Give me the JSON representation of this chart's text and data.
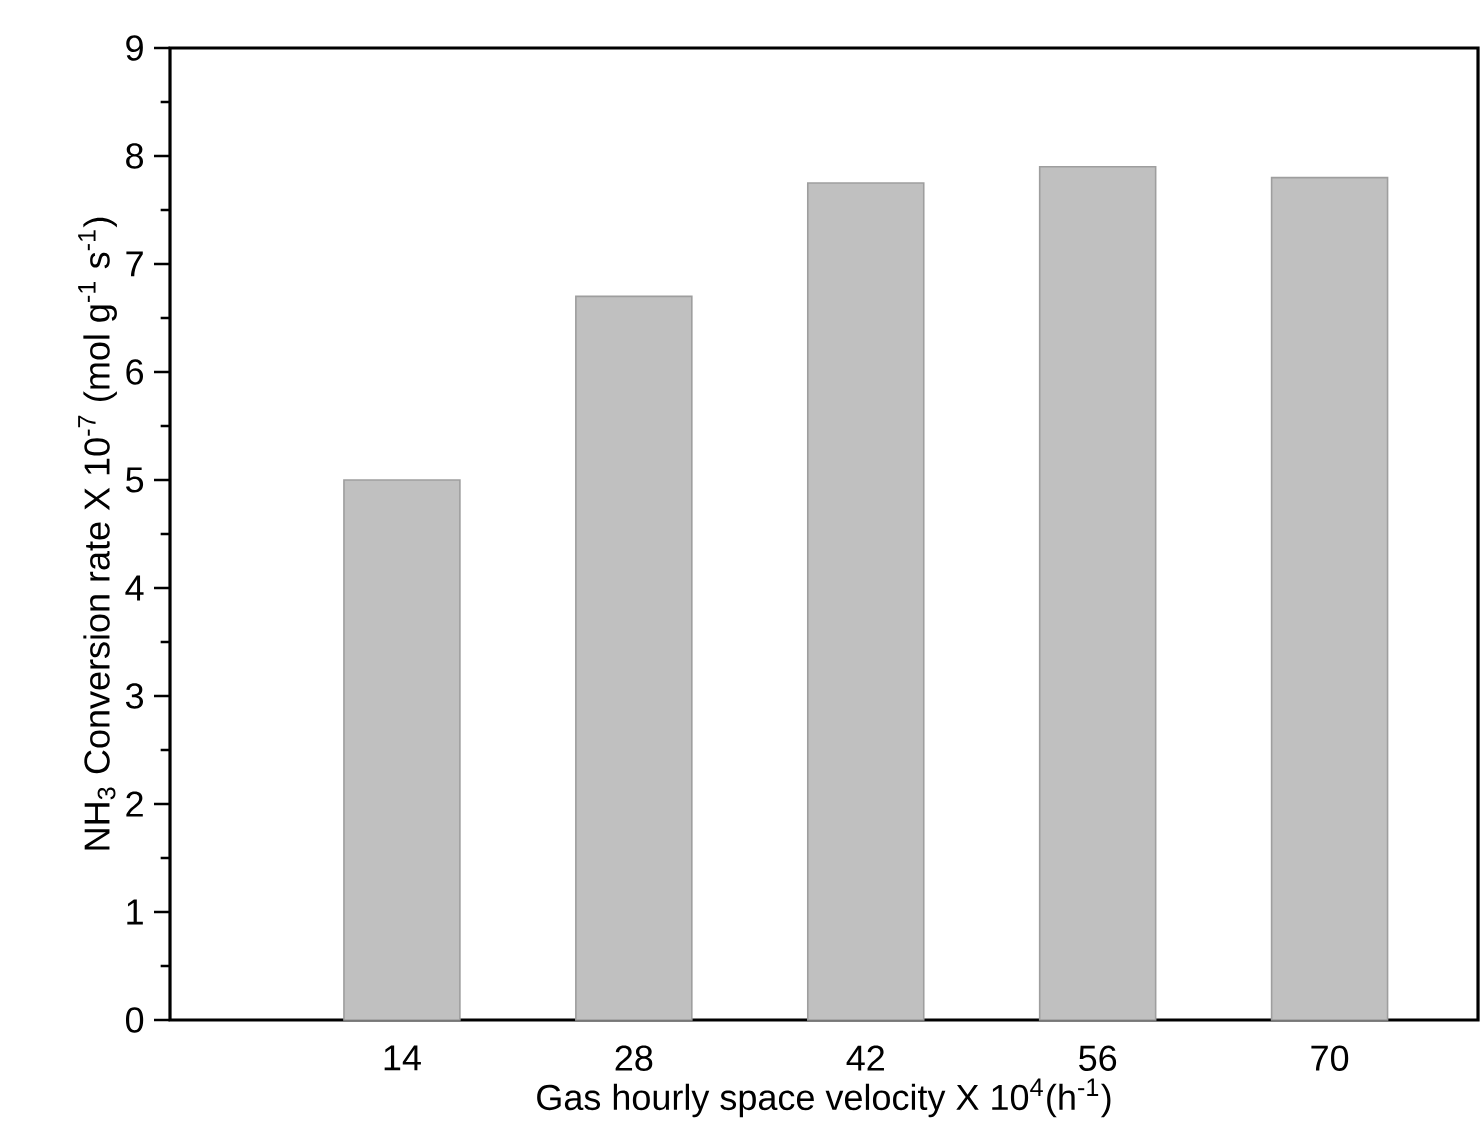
{
  "chart_data": {
    "type": "bar",
    "xlabel": "Gas hourly space velocity X 10$^{4}$(h$^{-1}$)",
    "ylabel": "NH$_{3}$ Conversion rate X 10$^{-7}$ (mol g$^{-1}$ s$^{-1}$)",
    "categories": [
      "14",
      "28",
      "42",
      "56",
      "70"
    ],
    "values": [
      5.0,
      6.7,
      7.75,
      7.9,
      7.8
    ],
    "color": "#c0c0c0",
    "ylim": [
      0,
      9
    ],
    "yticks": [
      0,
      1,
      2,
      3,
      4,
      5,
      6,
      7,
      8,
      9
    ],
    "grid": false
  }
}
